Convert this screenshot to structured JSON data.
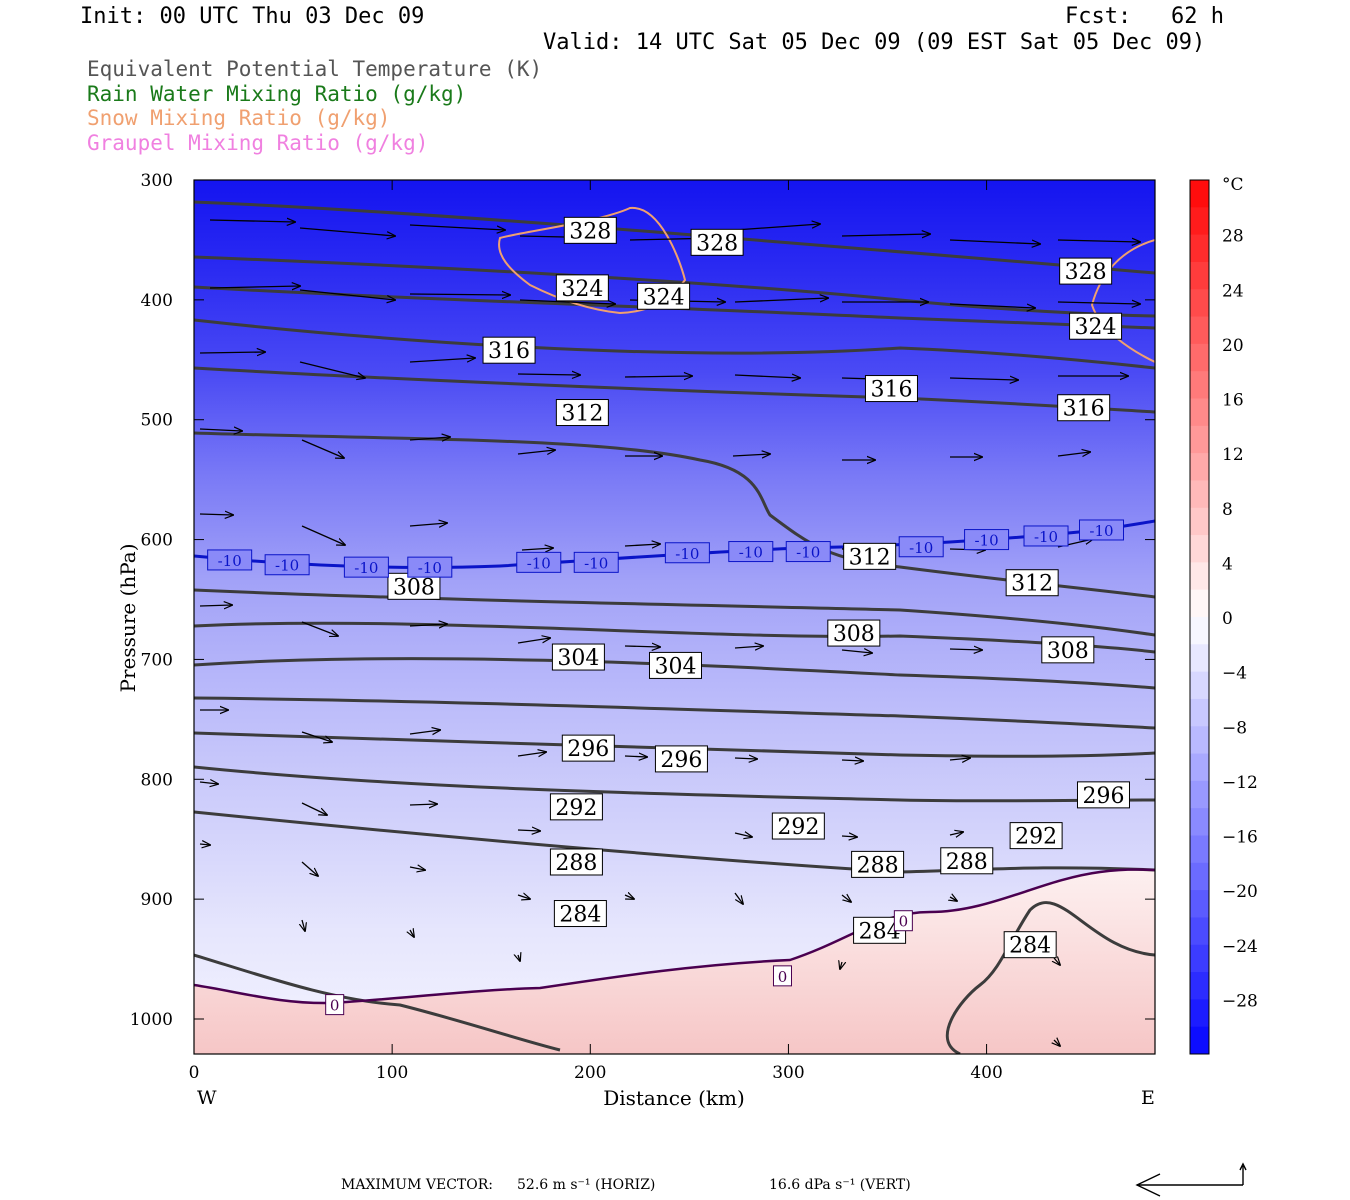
{
  "header": {
    "init": "Init: 00 UTC Thu 03 Dec 09",
    "fcst": "Fcst:   62 h",
    "valid": "Valid: 14 UTC Sat 05 Dec 09 (09 EST Sat 05 Dec 09)"
  },
  "legend": [
    {
      "label": "Equivalent Potential Temperature (K)",
      "color": "#555555"
    },
    {
      "label": "Rain Water Mixing Ratio (g/kg)",
      "color": "#1a7a1a"
    },
    {
      "label": "Snow Mixing Ratio (g/kg)",
      "color": "#f0a070"
    },
    {
      "label": "Graupel Mixing Ratio (g/kg)",
      "color": "#f080e0"
    }
  ],
  "footer": {
    "max_vector_label": "MAXIMUM VECTOR:",
    "horiz": "52.6 m s⁻¹ (HORIZ)",
    "vert": "16.6 dPa s⁻¹ (VERT)"
  },
  "chart_data": {
    "type": "heatmap",
    "xlabel": "Distance (km)",
    "ylabel": "Pressure (hPa)",
    "xlim": [
      0,
      485
    ],
    "ylim": [
      1030,
      300
    ],
    "x_ticks": [
      0,
      100,
      200,
      300,
      400
    ],
    "y_ticks": [
      300,
      400,
      500,
      600,
      700,
      800,
      900,
      1000
    ],
    "x_end_labels": {
      "left": "W",
      "right": "E"
    },
    "colorbar": {
      "unit": "°C",
      "ticks": [
        28,
        24,
        20,
        16,
        12,
        8,
        4,
        0,
        -4,
        -8,
        -12,
        -16,
        -20,
        -24,
        -28
      ],
      "range": [
        -32,
        32
      ]
    },
    "theta_e_labels": [
      {
        "text": "328",
        "x": 200,
        "p": 342
      },
      {
        "text": "328",
        "x": 264,
        "p": 352
      },
      {
        "text": "328",
        "x": 450,
        "p": 376
      },
      {
        "text": "324",
        "x": 196,
        "p": 390
      },
      {
        "text": "324",
        "x": 237,
        "p": 397
      },
      {
        "text": "324",
        "x": 455,
        "p": 422
      },
      {
        "text": "316",
        "x": 159,
        "p": 442
      },
      {
        "text": "316",
        "x": 352,
        "p": 474
      },
      {
        "text": "316",
        "x": 449,
        "p": 490
      },
      {
        "text": "312",
        "x": 196,
        "p": 494
      },
      {
        "text": "312",
        "x": 341,
        "p": 614
      },
      {
        "text": "312",
        "x": 423,
        "p": 636
      },
      {
        "text": "308",
        "x": 111,
        "p": 639
      },
      {
        "text": "308",
        "x": 333,
        "p": 678
      },
      {
        "text": "308",
        "x": 441,
        "p": 692
      },
      {
        "text": "304",
        "x": 194,
        "p": 698
      },
      {
        "text": "304",
        "x": 243,
        "p": 705
      },
      {
        "text": "296",
        "x": 199,
        "p": 774
      },
      {
        "text": "296",
        "x": 246,
        "p": 783
      },
      {
        "text": "296",
        "x": 459,
        "p": 813
      },
      {
        "text": "292",
        "x": 193,
        "p": 823
      },
      {
        "text": "292",
        "x": 305,
        "p": 839
      },
      {
        "text": "292",
        "x": 425,
        "p": 847
      },
      {
        "text": "288",
        "x": 193,
        "p": 869
      },
      {
        "text": "288",
        "x": 345,
        "p": 871
      },
      {
        "text": "288",
        "x": 390,
        "p": 868
      },
      {
        "text": "284",
        "x": 195,
        "p": 912
      },
      {
        "text": "284",
        "x": 346,
        "p": 926
      },
      {
        "text": "284",
        "x": 422,
        "p": 938
      }
    ],
    "temp_labels": [
      {
        "text": "-10",
        "x": 18,
        "p": 617
      },
      {
        "text": "-10",
        "x": 47,
        "p": 621
      },
      {
        "text": "-10",
        "x": 87,
        "p": 623
      },
      {
        "text": "-10",
        "x": 119,
        "p": 623
      },
      {
        "text": "-10",
        "x": 174,
        "p": 619
      },
      {
        "text": "-10",
        "x": 203,
        "p": 619
      },
      {
        "text": "-10",
        "x": 249,
        "p": 611
      },
      {
        "text": "-10",
        "x": 281,
        "p": 610
      },
      {
        "text": "-10",
        "x": 310,
        "p": 610
      },
      {
        "text": "-10",
        "x": 367,
        "p": 606
      },
      {
        "text": "-10",
        "x": 400,
        "p": 600
      },
      {
        "text": "-10",
        "x": 430,
        "p": 597
      },
      {
        "text": "-10",
        "x": 458,
        "p": 592
      },
      {
        "text": "0",
        "x": 71,
        "p": 988
      },
      {
        "text": "0",
        "x": 297,
        "p": 964
      },
      {
        "text": "0",
        "x": 358,
        "p": 918
      }
    ]
  }
}
